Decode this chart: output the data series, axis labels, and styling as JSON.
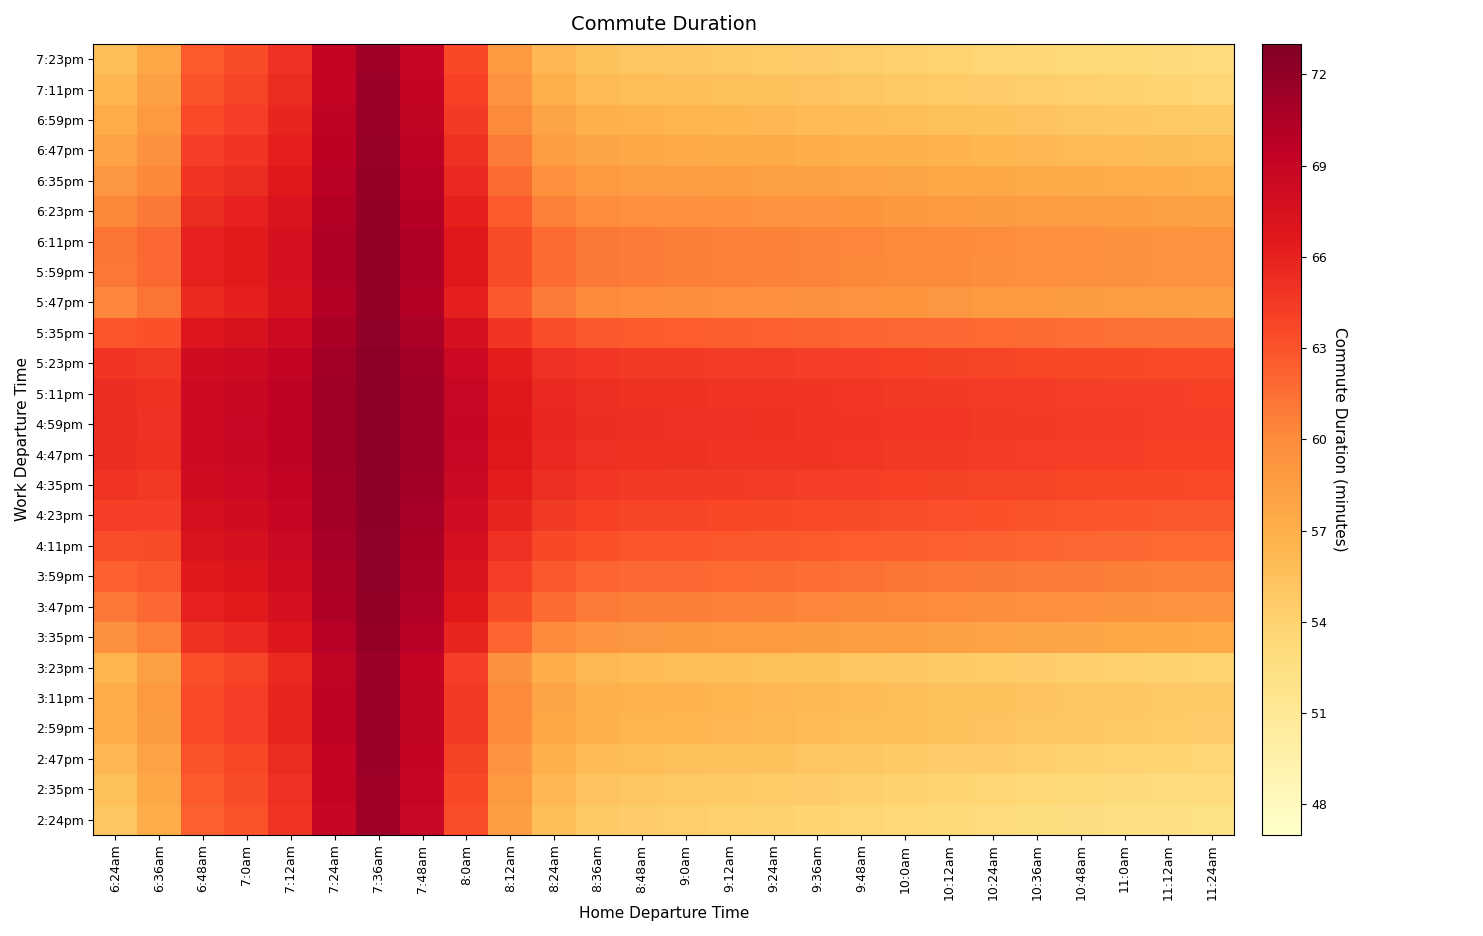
{
  "title": "Commute Duration",
  "xlabel": "Home Departure Time",
  "ylabel": "Work Departure Time",
  "colorbar_label": "Commute Duration (minutes)",
  "vmin": 47,
  "vmax": 73,
  "colorbar_ticks": [
    48,
    51,
    54,
    57,
    60,
    63,
    66,
    69,
    72
  ],
  "home_tick_labels": [
    "6:24am",
    "6:36am",
    "6:48am",
    "7:0am",
    "7:12am",
    "7:24am",
    "7:36am",
    "7:48am",
    "8:0am",
    "8:12am",
    "8:24am",
    "8:36am",
    "8:48am",
    "9:0am",
    "9:12am",
    "9:24am",
    "9:36am",
    "9:48am",
    "10:0am",
    "10:12am",
    "10:24am",
    "10:36am",
    "10:48am",
    "11:0am",
    "11:12am",
    "11:24am"
  ],
  "work_tick_labels": [
    "2:24pm",
    "2:35pm",
    "2:47pm",
    "2:59pm",
    "3:11pm",
    "3:23pm",
    "3:35pm",
    "3:47pm",
    "3:59pm",
    "4:11pm",
    "4:23pm",
    "4:35pm",
    "4:47pm",
    "4:59pm",
    "5:11pm",
    "5:23pm",
    "5:35pm",
    "5:47pm",
    "5:59pm",
    "6:11pm",
    "6:23pm",
    "6:35pm",
    "6:47pm",
    "6:59pm",
    "7:11pm",
    "7:23pm"
  ],
  "background_color": "#ffffff",
  "title_fontsize": 14,
  "label_fontsize": 11,
  "tick_fontsize": 9
}
